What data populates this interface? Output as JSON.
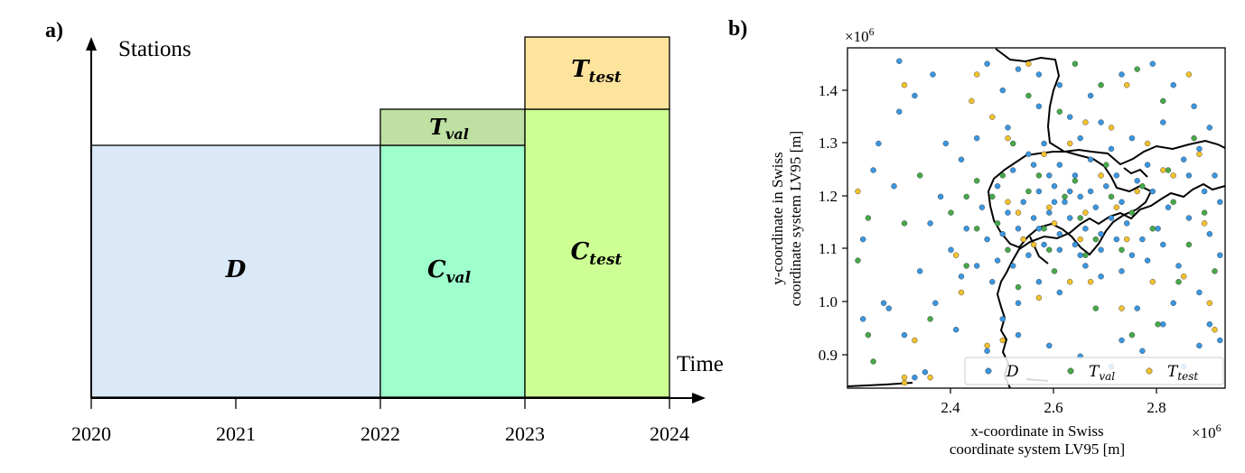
{
  "panel_a": {
    "label": "a)",
    "y_axis_label": "Stations",
    "x_axis_label": "Time",
    "x_ticks": [
      "2020",
      "2021",
      "2022",
      "2023",
      "2024"
    ],
    "regions": [
      {
        "symbol": "D",
        "subscript": "",
        "color": "#dae8f8"
      },
      {
        "symbol": "C",
        "subscript": "val",
        "color": "#9effcd"
      },
      {
        "symbol": "T",
        "subscript": "val",
        "color": "#bee0a3"
      },
      {
        "symbol": "C",
        "subscript": "test",
        "color": "#cdff94"
      },
      {
        "symbol": "T",
        "subscript": "test",
        "color": "#fde49d"
      }
    ]
  },
  "chart_data": {
    "type": "scatter",
    "title": "",
    "label": "b)",
    "xlabel_line1": "x-coordinate in Swiss",
    "xlabel_line2": "coordinate system LV95 [m]",
    "ylabel_line1": "y-coordinate in Swiss",
    "ylabel_line2": "coordinate system LV95 [m]",
    "x_scale": "×10",
    "x_scale_exp": "6",
    "y_scale": "×10",
    "y_scale_exp": "6",
    "xlim": [
      2.25,
      2.98
    ],
    "ylim": [
      0.84,
      1.48
    ],
    "x_ticks": [
      "2.4",
      "2.6",
      "2.8"
    ],
    "y_ticks": [
      "0.9",
      "1.0",
      "1.1",
      "1.2",
      "1.3",
      "1.4"
    ],
    "legend_position": "bottom",
    "series": [
      {
        "name": "D",
        "subscript": "",
        "color": "#3a96e0",
        "points": [
          [
            2.35,
            1.455
          ],
          [
            2.415,
            1.43
          ],
          [
            2.38,
            1.39
          ],
          [
            2.31,
            1.3
          ],
          [
            2.35,
            1.36
          ],
          [
            2.34,
            1.22
          ],
          [
            2.28,
            1.12
          ],
          [
            2.32,
            1.0
          ],
          [
            2.33,
            0.99
          ],
          [
            2.36,
            0.94
          ],
          [
            2.38,
            0.86
          ],
          [
            2.4,
            0.87
          ],
          [
            2.45,
            1.1
          ],
          [
            2.47,
            1.05
          ],
          [
            2.44,
            1.3
          ],
          [
            2.52,
            1.45
          ],
          [
            2.55,
            1.4
          ],
          [
            2.58,
            1.44
          ],
          [
            2.62,
            1.43
          ],
          [
            2.66,
            1.41
          ],
          [
            2.72,
            1.39
          ],
          [
            2.78,
            1.43
          ],
          [
            2.84,
            1.45
          ],
          [
            2.88,
            1.41
          ],
          [
            2.92,
            1.37
          ],
          [
            2.95,
            1.33
          ],
          [
            2.93,
            1.29
          ],
          [
            2.9,
            1.27
          ],
          [
            2.96,
            1.24
          ],
          [
            2.94,
            1.21
          ],
          [
            2.97,
            1.19
          ],
          [
            2.91,
            1.16
          ],
          [
            2.95,
            1.13
          ],
          [
            2.97,
            1.09
          ],
          [
            2.89,
            1.07
          ],
          [
            2.93,
            1.02
          ],
          [
            2.88,
            1.0
          ],
          [
            2.95,
            0.96
          ],
          [
            2.97,
            0.93
          ],
          [
            2.93,
            0.92
          ],
          [
            2.9,
            0.88
          ],
          [
            2.86,
            0.96
          ],
          [
            2.81,
            0.99
          ],
          [
            2.78,
            0.93
          ],
          [
            2.74,
            1.05
          ],
          [
            2.7,
            1.09
          ],
          [
            2.66,
            1.02
          ],
          [
            2.62,
            1.04
          ],
          [
            2.58,
            1.0
          ],
          [
            2.55,
            0.97
          ],
          [
            2.53,
            1.04
          ],
          [
            2.5,
            1.07
          ],
          [
            2.48,
            1.14
          ],
          [
            2.51,
            1.18
          ],
          [
            2.54,
            1.22
          ],
          [
            2.57,
            1.25
          ],
          [
            2.6,
            1.28
          ],
          [
            2.63,
            1.3
          ],
          [
            2.66,
            1.26
          ],
          [
            2.69,
            1.24
          ],
          [
            2.72,
            1.27
          ],
          [
            2.75,
            1.22
          ],
          [
            2.78,
            1.19
          ],
          [
            2.81,
            1.23
          ],
          [
            2.84,
            1.21
          ],
          [
            2.87,
            1.18
          ],
          [
            2.85,
            1.14
          ],
          [
            2.82,
            1.12
          ],
          [
            2.79,
            1.15
          ],
          [
            2.76,
            1.16
          ],
          [
            2.73,
            1.18
          ],
          [
            2.7,
            1.2
          ],
          [
            2.67,
            1.19
          ],
          [
            2.64,
            1.17
          ],
          [
            2.61,
            1.16
          ],
          [
            2.58,
            1.14
          ],
          [
            2.55,
            1.13
          ],
          [
            2.52,
            1.12
          ],
          [
            2.56,
            1.17
          ],
          [
            2.59,
            1.19
          ],
          [
            2.62,
            1.21
          ],
          [
            2.65,
            1.22
          ],
          [
            2.68,
            1.16
          ],
          [
            2.71,
            1.14
          ],
          [
            2.74,
            1.13
          ],
          [
            2.77,
            1.12
          ],
          [
            2.8,
            1.09
          ],
          [
            2.83,
            1.08
          ],
          [
            2.86,
            1.11
          ],
          [
            2.6,
            1.09
          ],
          [
            2.63,
            1.11
          ],
          [
            2.66,
            1.13
          ],
          [
            2.69,
            1.11
          ],
          [
            2.57,
            1.07
          ],
          [
            2.54,
            1.08
          ],
          [
            2.64,
            1.24
          ],
          [
            2.61,
            1.26
          ],
          [
            2.7,
            1.31
          ],
          [
            2.76,
            1.29
          ],
          [
            2.5,
            1.31
          ],
          [
            2.47,
            1.27
          ],
          [
            2.43,
            1.2
          ],
          [
            2.41,
            1.15
          ],
          [
            2.39,
            1.06
          ],
          [
            2.42,
            1.0
          ],
          [
            2.46,
            0.95
          ],
          [
            2.52,
            0.91
          ],
          [
            2.58,
            0.94
          ],
          [
            2.64,
            0.92
          ],
          [
            2.7,
            0.9
          ],
          [
            2.76,
            0.88
          ],
          [
            2.82,
            0.91
          ],
          [
            2.3,
            1.25
          ],
          [
            2.28,
            0.97
          ],
          [
            2.62,
            1.37
          ],
          [
            2.68,
            1.35
          ],
          [
            2.56,
            1.33
          ],
          [
            2.74,
            1.34
          ],
          [
            2.8,
            1.31
          ],
          [
            2.86,
            1.34
          ],
          [
            2.91,
            1.24
          ],
          [
            2.83,
            1.26
          ],
          [
            2.77,
            1.24
          ],
          [
            2.72,
            1.21
          ],
          [
            2.68,
            1.21
          ],
          [
            2.65,
            1.19
          ],
          [
            2.62,
            1.14
          ],
          [
            2.59,
            1.12
          ],
          [
            2.66,
            1.1
          ],
          [
            2.71,
            1.07
          ],
          [
            2.74,
            1.1
          ],
          [
            2.78,
            1.06
          ]
        ]
      },
      {
        "name": "T",
        "subscript": "val",
        "color": "#47a84a",
        "points": [
          [
            2.27,
            1.08
          ],
          [
            2.29,
            0.94
          ],
          [
            2.3,
            0.89
          ],
          [
            2.29,
            1.16
          ],
          [
            2.36,
            1.15
          ],
          [
            2.39,
            1.24
          ],
          [
            2.41,
            0.97
          ],
          [
            2.48,
            1.07
          ],
          [
            2.5,
            1.14
          ],
          [
            2.53,
            1.2
          ],
          [
            2.56,
            1.1
          ],
          [
            2.6,
            1.21
          ],
          [
            2.63,
            1.14
          ],
          [
            2.67,
            1.2
          ],
          [
            2.7,
            1.16
          ],
          [
            2.73,
            1.12
          ],
          [
            2.76,
            1.2
          ],
          [
            2.8,
            1.17
          ],
          [
            2.84,
            1.14
          ],
          [
            2.88,
            1.19
          ],
          [
            2.91,
            1.11
          ],
          [
            2.94,
            1.17
          ],
          [
            2.96,
            1.06
          ],
          [
            2.89,
            1.04
          ],
          [
            2.85,
            0.96
          ],
          [
            2.8,
            0.94
          ],
          [
            2.73,
            0.99
          ],
          [
            2.65,
            1.06
          ],
          [
            2.58,
            1.03
          ],
          [
            2.54,
            1.15
          ],
          [
            2.62,
            1.24
          ],
          [
            2.69,
            1.23
          ],
          [
            2.75,
            1.26
          ],
          [
            2.82,
            1.22
          ],
          [
            2.87,
            1.25
          ],
          [
            2.66,
            1.36
          ],
          [
            2.6,
            1.39
          ],
          [
            2.74,
            1.41
          ],
          [
            2.81,
            1.44
          ],
          [
            2.69,
            1.45
          ],
          [
            2.57,
            1.3
          ],
          [
            2.86,
            1.38
          ],
          [
            2.92,
            1.31
          ],
          [
            2.55,
            1.24
          ],
          [
            2.64,
            1.1
          ],
          [
            2.71,
            1.09
          ],
          [
            2.78,
            1.1
          ],
          [
            2.45,
            1.17
          ],
          [
            2.5,
            1.23
          ],
          [
            2.48,
            1.2
          ]
        ]
      },
      {
        "name": "T",
        "subscript": "test",
        "color": "#f2c12e",
        "points": [
          [
            2.27,
            1.21
          ],
          [
            2.36,
            1.41
          ],
          [
            2.36,
            0.86
          ],
          [
            2.36,
            0.85
          ],
          [
            2.38,
            0.93
          ],
          [
            2.41,
            0.86
          ],
          [
            2.46,
            1.09
          ],
          [
            2.49,
            1.38
          ],
          [
            2.5,
            1.43
          ],
          [
            2.53,
            1.35
          ],
          [
            2.56,
            1.31
          ],
          [
            2.6,
            1.45
          ],
          [
            2.63,
            1.28
          ],
          [
            2.68,
            1.3
          ],
          [
            2.71,
            1.34
          ],
          [
            2.76,
            1.33
          ],
          [
            2.79,
            1.41
          ],
          [
            2.83,
            1.3
          ],
          [
            2.86,
            1.25
          ],
          [
            2.88,
            1.24
          ],
          [
            2.91,
            1.43
          ],
          [
            2.93,
            1.28
          ],
          [
            2.95,
            1.0
          ],
          [
            2.96,
            0.95
          ],
          [
            2.94,
            1.15
          ],
          [
            2.9,
            1.05
          ],
          [
            2.84,
            1.04
          ],
          [
            2.78,
            0.99
          ],
          [
            2.72,
            1.04
          ],
          [
            2.68,
            1.04
          ],
          [
            2.62,
            1.01
          ],
          [
            2.55,
            0.93
          ],
          [
            2.52,
            0.92
          ],
          [
            2.56,
            1.19
          ],
          [
            2.59,
            1.12
          ],
          [
            2.64,
            1.18
          ],
          [
            2.71,
            1.17
          ],
          [
            2.74,
            1.24
          ],
          [
            2.79,
            1.12
          ],
          [
            2.47,
            1.02
          ],
          [
            2.58,
            1.17
          ],
          [
            2.65,
            1.15
          ],
          [
            2.81,
            1.21
          ],
          [
            2.77,
            1.18
          ],
          [
            2.61,
            1.11
          ],
          [
            2.7,
            1.12
          ]
        ]
      }
    ]
  }
}
